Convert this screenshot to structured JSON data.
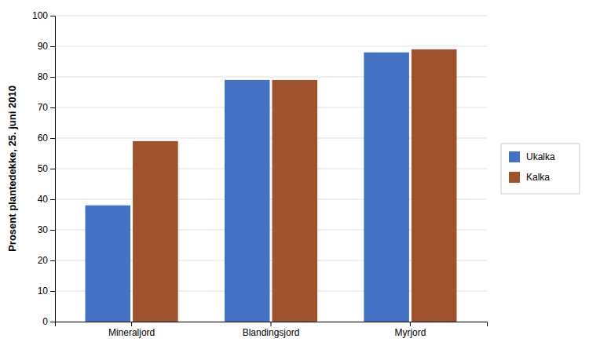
{
  "chart_data": {
    "type": "bar",
    "ylabel": "Prosent plantedekke, 25. juni 2010",
    "categories": [
      "Mineraljord",
      "Blandingsjord",
      "Myrjord"
    ],
    "series": [
      {
        "name": "Ukalka",
        "color": "#4472C4",
        "values": [
          38,
          79,
          88
        ]
      },
      {
        "name": "Kalka",
        "color": "#A0522D",
        "values": [
          59,
          79,
          89
        ]
      }
    ],
    "ylim": [
      0,
      100
    ],
    "yticks": [
      0,
      10,
      20,
      30,
      40,
      50,
      60,
      70,
      80,
      90,
      100
    ],
    "grid": true,
    "legend": "right"
  }
}
